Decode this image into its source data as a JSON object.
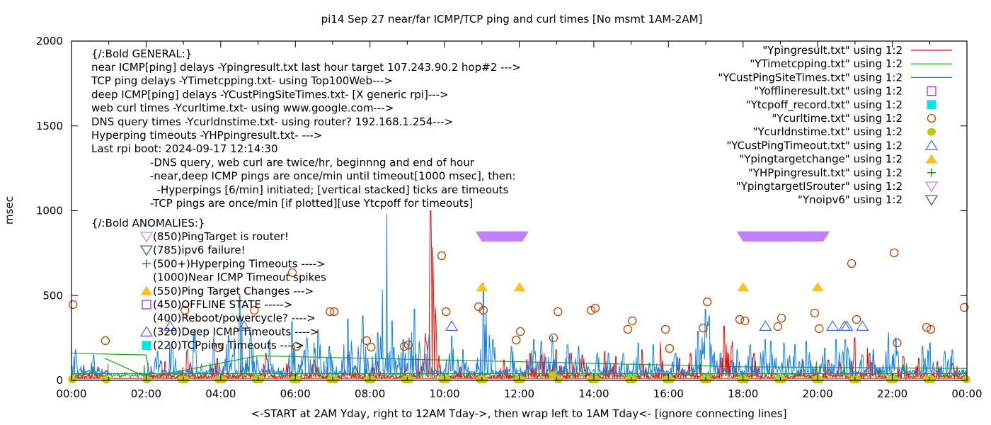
{
  "chart_data": {
    "type": "line",
    "title": "pi14 Sep 27  near/far ICMP/TCP ping and curl times [No msmt 1AM-2AM]",
    "xlabel": "<-START at 2AM Yday, right to 12AM Tday->, then wrap left to 1AM Tday<- [ignore connecting lines]",
    "ylabel": "msec",
    "xlim": [
      0,
      24
    ],
    "ylim": [
      0,
      2000
    ],
    "x_unit": "hour of day",
    "x_tick_labels": [
      "00:00",
      "02:00",
      "04:00",
      "06:00",
      "08:00",
      "10:00",
      "12:00",
      "14:00",
      "16:00",
      "18:00",
      "20:00",
      "22:00",
      "00:00"
    ],
    "x_tick_values": [
      0,
      2,
      4,
      6,
      8,
      10,
      12,
      14,
      16,
      18,
      20,
      22,
      24
    ],
    "x_minor_ticks_every_hours": 1,
    "y_tick_values": [
      0,
      500,
      1000,
      1500,
      2000
    ],
    "y_tick_labels": [
      "0",
      "500",
      "1000",
      "1500",
      "2000"
    ],
    "legend_position": "top-right",
    "legend": [
      {
        "label": "\"Ypingresult.txt\" using 1:2",
        "style": "line",
        "color": "#e8100c"
      },
      {
        "label": "\"YTimetcpping.txt\" using 1:2",
        "style": "line",
        "color": "#12a812"
      },
      {
        "label": "\"YCustPingSiteTimes.txt\" using 1:2",
        "style": "line",
        "color": "#1883e6"
      },
      {
        "label": "\"Yofflineresult.txt\" using 1:2",
        "style": "open-square",
        "color": "#a020f0"
      },
      {
        "label": "\"Ytcpoff_record.txt\" using 1:2",
        "style": "filled-square",
        "color": "#00e5e5"
      },
      {
        "label": "\"Ycurltime.txt\" using 1:2",
        "style": "open-circle",
        "color": "#c04000"
      },
      {
        "label": "\"Ycurldnstime.txt\" using 1:2",
        "style": "filled-circle",
        "color": "#c8c800"
      },
      {
        "label": "\"YCustPingTimeout.txt\" using 1:2",
        "style": "open-triangle-up",
        "color": "#4169e1"
      },
      {
        "label": "\"Ypingtargetchange\" using 1:2",
        "style": "filled-triangle-up",
        "color": "#ffc020"
      },
      {
        "label": "\"YHPpingresult.txt\" using 1:2",
        "style": "plus",
        "color": "#006400"
      },
      {
        "label": "\"YpingtargetISrouter\" using 1:2",
        "style": "open-triangle-down",
        "color": "#c080ff"
      },
      {
        "label": "\"Ynoipv6\" using 1:2",
        "style": "open-triangle-down",
        "color": "#2f4f6f"
      }
    ],
    "annotations_general": {
      "heading": "{/:Bold GENERAL:}",
      "lines": [
        "near ICMP[ping] delays -Ypingresult.txt last hour target 107.243.90.2 hop#2 --->",
        "TCP ping delays -YTimetcpping.txt- using Top100Web--->",
        "deep ICMP[ping] delays -YCustPingSiteTimes.txt- [X generic rpi]--->",
        "web curl times -Ycurltime.txt- using www.google.com--->",
        "DNS query times -Ycurldnstime.txt- using router? 192.168.1.254--->",
        "Hyperping timeouts -YHPpingresult.txt- --->",
        "Last rpi boot: 2024-09-17 12:14:30"
      ],
      "notes": [
        "-DNS query, web curl are twice/hr, beginnng and end of hour",
        "-near,deep ICMP pings are once/min until timeout[1000 msec], then:",
        "  -Hyperpings [6/min] initiated; [vertical stacked] ticks are timeouts",
        "-TCP pings are once/min [if plotted][use Ytcpoff for timeouts]"
      ]
    },
    "annotations_anomalies": {
      "heading": "{/:Bold ANOMALIES:}",
      "items": [
        {
          "marker": "open-triangle-down",
          "color": "#c080ff",
          "text": "(850)PingTarget is router!"
        },
        {
          "marker": "open-triangle-down",
          "color": "#2f4f6f",
          "text": "(785)ipv6 failure!"
        },
        {
          "marker": "plus",
          "color": "#006400",
          "text": "(500+)Hyperping Timeouts ---->"
        },
        {
          "marker": "none",
          "color": "",
          "text": "(1000)Near ICMP Timeout spikes"
        },
        {
          "marker": "filled-triangle-up",
          "color": "#ffc020",
          "text": "(550)Ping Target Changes --->"
        },
        {
          "marker": "open-square",
          "color": "#a020f0",
          "text": "(450)OFFLINE STATE ----->"
        },
        {
          "marker": "none",
          "color": "",
          "text": "(400)Reboot/powercycle? ---->"
        },
        {
          "marker": "open-triangle-up",
          "color": "#4169e1",
          "text": "(320)Deep ICMP Timeouts ---->"
        },
        {
          "marker": "filled-square",
          "color": "#00e5e5",
          "text": "(220)TCPping Timeouts ---->"
        }
      ]
    },
    "series": [
      {
        "name": "Ycurltime.txt",
        "style": "open-circle",
        "color": "#c04000",
        "points": [
          [
            0.04,
            447
          ],
          [
            0.91,
            234
          ],
          [
            3.04,
            413
          ],
          [
            3.93,
            192
          ],
          [
            4.9,
            413
          ],
          [
            5.92,
            635
          ],
          [
            6.03,
            200
          ],
          [
            6.93,
            405
          ],
          [
            7.04,
            405
          ],
          [
            7.91,
            234
          ],
          [
            8.03,
            196
          ],
          [
            8.92,
            200
          ],
          [
            9.03,
            209
          ],
          [
            9.92,
            735
          ],
          [
            10.04,
            405
          ],
          [
            10.91,
            434
          ],
          [
            11.04,
            413
          ],
          [
            11.92,
            238
          ],
          [
            12.03,
            288
          ],
          [
            12.92,
            251
          ],
          [
            13.04,
            405
          ],
          [
            13.93,
            413
          ],
          [
            14.04,
            426
          ],
          [
            14.91,
            301
          ],
          [
            15.03,
            351
          ],
          [
            15.92,
            301
          ],
          [
            16.03,
            188
          ],
          [
            16.93,
            309
          ],
          [
            17.04,
            463
          ],
          [
            17.91,
            359
          ],
          [
            18.05,
            351
          ],
          [
            18.93,
            317
          ],
          [
            19.03,
            367
          ],
          [
            19.92,
            397
          ],
          [
            20.04,
            305
          ],
          [
            20.91,
            689
          ],
          [
            21.04,
            359
          ],
          [
            22.05,
            752
          ],
          [
            22.13,
            221
          ],
          [
            22.92,
            313
          ],
          [
            23.03,
            301
          ],
          [
            23.93,
            430
          ]
        ]
      },
      {
        "name": "Ycurldnstime.txt",
        "style": "filled-circle",
        "color": "#c8c800",
        "points": [
          [
            0.02,
            5
          ],
          [
            0.93,
            5
          ],
          [
            2.02,
            5
          ],
          [
            2.95,
            5
          ],
          [
            3.05,
            5
          ],
          [
            3.95,
            5
          ],
          [
            4.05,
            5
          ],
          [
            4.95,
            5
          ],
          [
            5.05,
            5
          ],
          [
            5.95,
            5
          ],
          [
            6.05,
            5
          ],
          [
            6.95,
            5
          ],
          [
            7.05,
            5
          ],
          [
            7.95,
            5
          ],
          [
            8.05,
            5
          ],
          [
            8.95,
            5
          ],
          [
            9.05,
            5
          ],
          [
            9.95,
            5
          ],
          [
            10.05,
            5
          ],
          [
            10.95,
            5
          ],
          [
            11.05,
            5
          ],
          [
            11.95,
            5
          ],
          [
            12.05,
            5
          ],
          [
            12.9,
            30
          ],
          [
            13.05,
            5
          ],
          [
            13.95,
            5
          ],
          [
            14.05,
            5
          ],
          [
            14.95,
            5
          ],
          [
            15.05,
            5
          ],
          [
            15.95,
            5
          ],
          [
            16.05,
            5
          ],
          [
            16.95,
            5
          ],
          [
            17.05,
            5
          ],
          [
            17.95,
            5
          ],
          [
            18.05,
            5
          ],
          [
            18.95,
            5
          ],
          [
            19.05,
            5
          ],
          [
            19.95,
            5
          ],
          [
            20.05,
            5
          ],
          [
            20.95,
            5
          ],
          [
            21.05,
            5
          ],
          [
            21.95,
            5
          ],
          [
            22.05,
            5
          ],
          [
            22.95,
            5
          ],
          [
            23.05,
            5
          ],
          [
            23.98,
            5
          ]
        ]
      },
      {
        "name": "YCustPingTimeout.txt",
        "style": "open-triangle-up",
        "color": "#4169e1",
        "points": [
          [
            2.64,
            320
          ],
          [
            4.63,
            320
          ],
          [
            10.19,
            320
          ],
          [
            18.6,
            320
          ],
          [
            20.4,
            320
          ],
          [
            20.72,
            320
          ],
          [
            20.78,
            320
          ],
          [
            21.2,
            320
          ]
        ]
      },
      {
        "name": "Ypingtargetchange",
        "style": "filled-triangle-up",
        "color": "#ffc020",
        "points": [
          [
            11.0,
            550
          ],
          [
            12.01,
            550
          ],
          [
            18.0,
            550
          ],
          [
            20.0,
            550
          ]
        ]
      },
      {
        "name": "YpingtargetISrouter",
        "style": "open-triangle-down-band",
        "color": "#c080ff",
        "value": 850,
        "ranges": [
          [
            11.0,
            12.1
          ],
          [
            18.0,
            20.15
          ]
        ]
      },
      {
        "name": "Ypingresult.txt",
        "style": "line",
        "color": "#e8100c",
        "baseline_msec": 15,
        "spikes": [
          [
            0.55,
            80
          ],
          [
            1.1,
            190
          ],
          [
            1.3,
            160
          ],
          [
            2.5,
            110
          ],
          [
            3.1,
            180
          ],
          [
            3.9,
            130
          ],
          [
            4.7,
            100
          ],
          [
            5.2,
            160
          ],
          [
            5.8,
            90
          ],
          [
            6.5,
            120
          ],
          [
            7.4,
            130
          ],
          [
            8.2,
            110
          ],
          [
            9.3,
            130
          ],
          [
            9.63,
            1000
          ],
          [
            9.65,
            760
          ],
          [
            10.5,
            120
          ],
          [
            11.6,
            120
          ],
          [
            12.3,
            160
          ],
          [
            12.6,
            150
          ],
          [
            13.0,
            180
          ],
          [
            13.4,
            160
          ],
          [
            13.7,
            150
          ],
          [
            14.3,
            170
          ],
          [
            14.6,
            140
          ],
          [
            15.3,
            180
          ],
          [
            15.8,
            150
          ],
          [
            16.3,
            130
          ],
          [
            16.6,
            160
          ],
          [
            17.5,
            320
          ],
          [
            17.7,
            200
          ],
          [
            18.3,
            160
          ],
          [
            19.6,
            120
          ],
          [
            20.3,
            120
          ],
          [
            20.6,
            110
          ],
          [
            21.0,
            250
          ],
          [
            21.4,
            160
          ],
          [
            21.5,
            150
          ],
          [
            22.3,
            140
          ],
          [
            22.7,
            130
          ],
          [
            23.2,
            110
          ],
          [
            23.6,
            100
          ]
        ]
      },
      {
        "name": "YTimetcpping.txt",
        "style": "line",
        "color": "#12a812",
        "baseline_trend": [
          [
            0,
            160
          ],
          [
            2.0,
            150
          ],
          [
            2.1,
            20
          ],
          [
            5.0,
            145
          ],
          [
            10.0,
            120
          ],
          [
            14.0,
            100
          ],
          [
            18.0,
            80
          ],
          [
            24.0,
            70
          ]
        ],
        "extra_segments": [
          [
            [
              0.9,
              130
            ],
            [
              1.0,
              120
            ],
            [
              2.0,
              20
            ]
          ]
        ],
        "spikes": [
          [
            3.4,
            50
          ],
          [
            6.1,
            60
          ],
          [
            9.6,
            80
          ],
          [
            11.3,
            60
          ],
          [
            15.5,
            100
          ],
          [
            16.8,
            80
          ],
          [
            17.6,
            120
          ],
          [
            21.6,
            60
          ],
          [
            22.3,
            90
          ]
        ]
      },
      {
        "name": "YCustPingSiteTimes.txt",
        "style": "line",
        "color": "#1883e6",
        "baseline_msec": 40,
        "spikes": [
          [
            0.1,
            180
          ],
          [
            0.6,
            150
          ],
          [
            2.3,
            170
          ],
          [
            2.7,
            200
          ],
          [
            3.3,
            300
          ],
          [
            3.8,
            230
          ],
          [
            4.2,
            260
          ],
          [
            4.5,
            500
          ],
          [
            4.8,
            280
          ],
          [
            5.3,
            240
          ],
          [
            5.9,
            350
          ],
          [
            6.3,
            250
          ],
          [
            6.6,
            300
          ],
          [
            6.9,
            200
          ],
          [
            7.4,
            360
          ],
          [
            7.8,
            380
          ],
          [
            8.2,
            280
          ],
          [
            8.45,
            980
          ],
          [
            8.6,
            350
          ],
          [
            8.9,
            240
          ],
          [
            9.2,
            420
          ],
          [
            9.6,
            270
          ],
          [
            10.2,
            260
          ],
          [
            10.5,
            180
          ],
          [
            11.05,
            570
          ],
          [
            11.3,
            240
          ],
          [
            11.8,
            200
          ],
          [
            12.4,
            240
          ],
          [
            12.6,
            230
          ],
          [
            12.9,
            260
          ],
          [
            13.3,
            210
          ],
          [
            13.6,
            200
          ],
          [
            14.1,
            160
          ],
          [
            14.4,
            160
          ],
          [
            14.8,
            160
          ],
          [
            15.2,
            220
          ],
          [
            15.6,
            210
          ],
          [
            16.2,
            160
          ],
          [
            16.8,
            290
          ],
          [
            17.0,
            420
          ],
          [
            17.1,
            380
          ],
          [
            17.4,
            160
          ],
          [
            17.7,
            120
          ],
          [
            17.85,
            180
          ],
          [
            18.2,
            210
          ],
          [
            18.6,
            240
          ],
          [
            18.75,
            230
          ],
          [
            19.1,
            220
          ],
          [
            19.4,
            210
          ],
          [
            19.7,
            230
          ],
          [
            20.2,
            190
          ],
          [
            20.5,
            240
          ],
          [
            20.75,
            240
          ],
          [
            21.2,
            150
          ],
          [
            21.5,
            180
          ],
          [
            21.9,
            220
          ],
          [
            22.1,
            250
          ],
          [
            22.15,
            170
          ],
          [
            22.8,
            200
          ],
          [
            23.0,
            220
          ],
          [
            23.4,
            170
          ],
          [
            23.6,
            180
          ]
        ]
      }
    ]
  }
}
